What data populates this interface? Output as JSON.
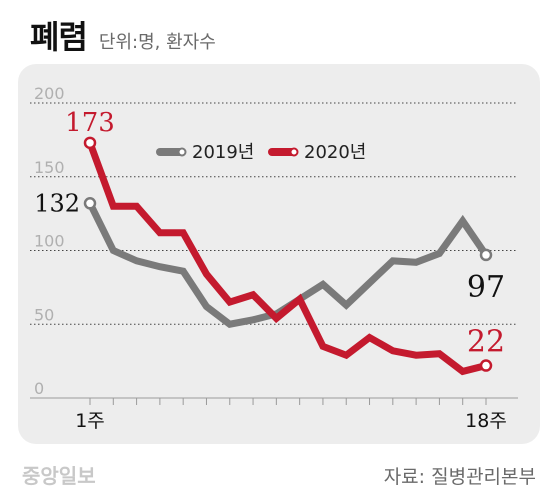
{
  "header": {
    "title": "폐렴",
    "subtitle": "단위:명, 환자수"
  },
  "footer": {
    "logo": "중앙일보",
    "source": "자료: 질병관리본부"
  },
  "colors": {
    "series_2019": "#7a7a7a",
    "series_2020": "#c41a2e",
    "panel_bg": "#ededed",
    "grid": "#444444"
  },
  "chart_data": {
    "type": "line",
    "x": [
      1,
      2,
      3,
      4,
      5,
      6,
      7,
      8,
      9,
      10,
      11,
      12,
      13,
      14,
      15,
      16,
      17,
      18
    ],
    "x_tick_labels": {
      "first": "1주",
      "last": "18주"
    },
    "ylim": [
      0,
      200
    ],
    "y_ticks": [
      "200",
      "150",
      "100",
      "50",
      "0"
    ],
    "grid": true,
    "legend_placement": "top-center",
    "series": [
      {
        "name": "2019년",
        "values": [
          132,
          100,
          93,
          89,
          86,
          62,
          50,
          53,
          57,
          67,
          77,
          63,
          78,
          93,
          92,
          98,
          120,
          97
        ],
        "start_label": "132",
        "end_label": "97"
      },
      {
        "name": "2020년",
        "values": [
          173,
          130,
          130,
          112,
          112,
          84,
          65,
          70,
          54,
          67,
          35,
          29,
          41,
          32,
          29,
          30,
          18,
          22
        ],
        "start_label": "173",
        "end_label": "22"
      }
    ]
  }
}
